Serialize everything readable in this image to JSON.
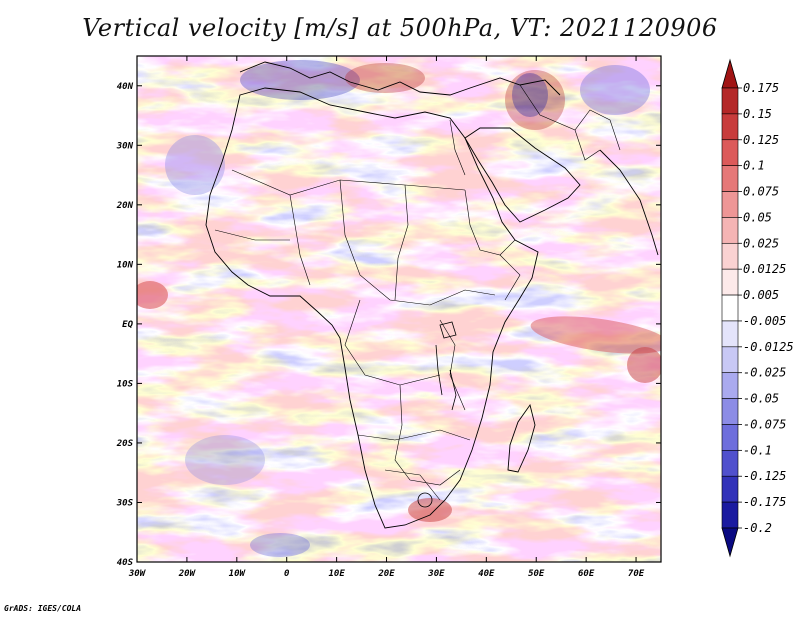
{
  "title": "Vertical velocity [m/s] at 500hPa, VT: 2021120906",
  "credit": "GrADS: IGES/COLA",
  "map": {
    "lon_range": [
      -30,
      75
    ],
    "lat_range": [
      -40,
      45
    ],
    "lon_ticks": [
      {
        "value": -30,
        "label": "30W"
      },
      {
        "value": -20,
        "label": "20W"
      },
      {
        "value": -10,
        "label": "10W"
      },
      {
        "value": 0,
        "label": "0"
      },
      {
        "value": 10,
        "label": "10E"
      },
      {
        "value": 20,
        "label": "20E"
      },
      {
        "value": 30,
        "label": "30E"
      },
      {
        "value": 40,
        "label": "40E"
      },
      {
        "value": 50,
        "label": "50E"
      },
      {
        "value": 60,
        "label": "60E"
      },
      {
        "value": 70,
        "label": "70E"
      }
    ],
    "lat_ticks": [
      {
        "value": 40,
        "label": "40N"
      },
      {
        "value": 30,
        "label": "30N"
      },
      {
        "value": 20,
        "label": "20N"
      },
      {
        "value": 10,
        "label": "10N"
      },
      {
        "value": 0,
        "label": "EQ"
      },
      {
        "value": -10,
        "label": "10S"
      },
      {
        "value": -20,
        "label": "20S"
      },
      {
        "value": -30,
        "label": "30S"
      },
      {
        "value": -40,
        "label": "40S"
      }
    ]
  },
  "colorbar": {
    "levels": [
      "0.175",
      "0.15",
      "0.125",
      "0.1",
      "0.075",
      "0.05",
      "0.025",
      "0.0125",
      "0.005",
      "-0.005",
      "-0.0125",
      "-0.025",
      "-0.05",
      "-0.075",
      "-0.1",
      "-0.125",
      "-0.175",
      "-0.2"
    ],
    "colors": [
      "#a01414",
      "#b42828",
      "#c83c3c",
      "#dc5a5a",
      "#e67878",
      "#ee9696",
      "#f5b4b4",
      "#fad2d2",
      "#fdeaea",
      "#ffffff",
      "#e4e4fb",
      "#c8c8f5",
      "#aaaaef",
      "#8c8ce6",
      "#6e6edc",
      "#5050cd",
      "#3232b9",
      "#1a1aa0",
      "#0a0a82"
    ]
  }
}
